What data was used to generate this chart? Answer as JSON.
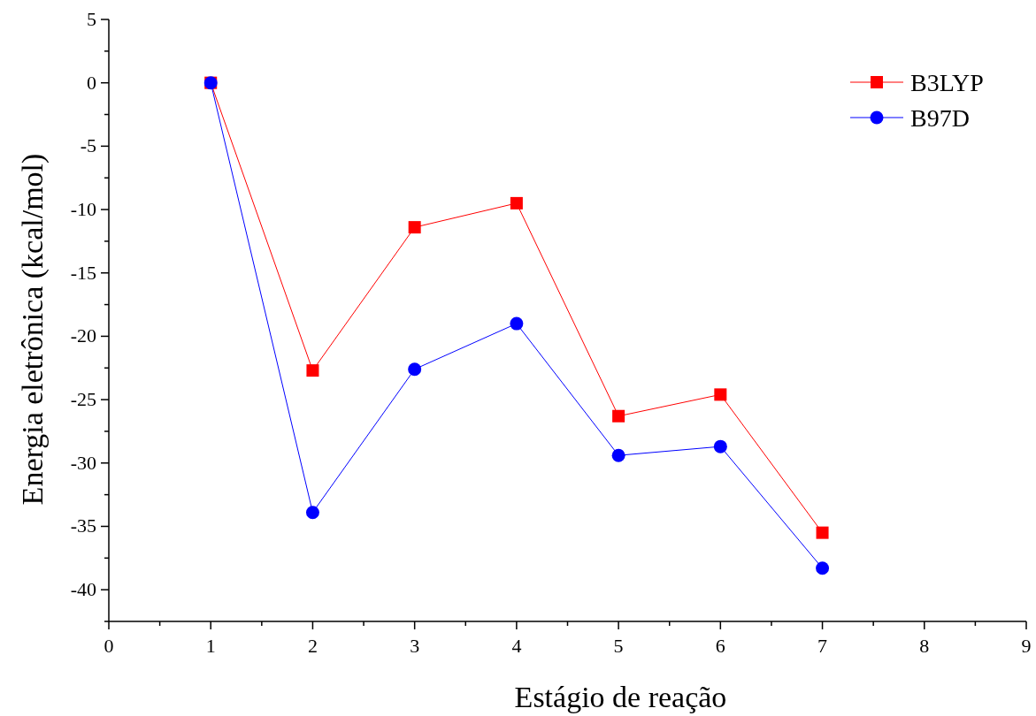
{
  "chart_data": {
    "type": "line",
    "xlabel": "Estágio de reação",
    "ylabel": "Energia eletrônica (kcal/mol)",
    "x": [
      1,
      2,
      3,
      4,
      5,
      6,
      7
    ],
    "series": [
      {
        "name": "B3LYP",
        "color": "#ff0000",
        "marker": "square",
        "values": [
          0,
          -22.7,
          -11.4,
          -9.5,
          -26.3,
          -24.6,
          -35.5
        ]
      },
      {
        "name": "B97D",
        "color": "#0000ff",
        "marker": "circle",
        "values": [
          0,
          -33.9,
          -22.6,
          -19.0,
          -29.4,
          -28.7,
          -38.3
        ]
      }
    ],
    "xlim": [
      0,
      9
    ],
    "ylim": [
      -42.5,
      5
    ],
    "xticks": [
      0,
      {
        "value": 0.5,
        "label": null
      },
      1,
      {
        "value": 1.5,
        "label": null
      },
      2,
      {
        "value": 2.5,
        "label": null
      },
      3,
      {
        "value": 3.5,
        "label": null
      },
      4,
      {
        "value": 4.5,
        "label": null
      },
      5,
      {
        "value": 5.5,
        "label": null
      },
      6,
      {
        "value": 6.5,
        "label": null
      },
      7,
      {
        "value": 7.5,
        "label": null
      },
      8,
      {
        "value": 8.5,
        "label": null
      },
      9
    ],
    "yticks": [
      {
        "value": -42.5,
        "label": null
      },
      -40,
      {
        "value": -37.5,
        "label": null
      },
      -35,
      {
        "value": -32.5,
        "label": null
      },
      -30,
      {
        "value": -27.5,
        "label": null
      },
      -25,
      {
        "value": -22.5,
        "label": null
      },
      -20,
      {
        "value": -17.5,
        "label": null
      },
      -15,
      {
        "value": -12.5,
        "label": null
      },
      -10,
      {
        "value": -7.5,
        "label": null
      },
      -5,
      {
        "value": -2.5,
        "label": null
      },
      0,
      {
        "value": 2.5,
        "label": null
      },
      5
    ],
    "legend": "top right",
    "grid": false,
    "line_style": "solid"
  }
}
